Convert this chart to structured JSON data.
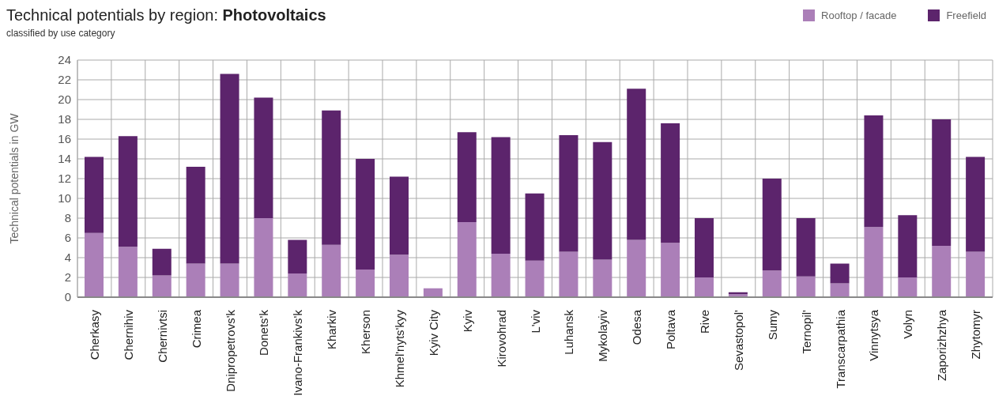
{
  "chart_data": {
    "type": "bar",
    "title": "Technical potentials by region: Photovoltaics",
    "subtitle": "classified by use category",
    "ylabel": "Technical potentials in GW",
    "categories": [
      "Cherkasy",
      "Chernihiv",
      "Chernivtsi",
      "Crimea",
      "Dnipropetrovs'k",
      "Donets'k",
      "Ivano-Frankivs'k",
      "Kharkiv",
      "Kherson",
      "Khmel'nyts'kyy",
      "Kyiv City",
      "Kyiv",
      "Kirovohrad",
      "L'viv",
      "Luhansk",
      "Mykolayiv",
      "Odesa",
      "Poltava",
      "Rive",
      "Sevastopol'",
      "Sumy",
      "Ternopil'",
      "Transcarpathia",
      "Vinnytsya",
      "Volyn",
      "Zaporizhzhya",
      "Zhytomyr"
    ],
    "series": [
      {
        "name": "Rooftop / facade",
        "color": "#ab7fb8",
        "values": [
          6.5,
          5.1,
          2.2,
          3.4,
          3.4,
          8.0,
          2.4,
          5.3,
          2.8,
          4.3,
          0.9,
          7.6,
          4.4,
          3.7,
          4.6,
          3.8,
          5.8,
          5.5,
          2.0,
          0.3,
          2.7,
          2.1,
          1.4,
          7.1,
          2.0,
          5.2,
          4.6
        ]
      },
      {
        "name": "Freefield",
        "color": "#5c246c",
        "values": [
          7.7,
          11.2,
          2.7,
          9.8,
          19.2,
          12.2,
          3.4,
          13.6,
          11.2,
          7.9,
          0,
          9.1,
          11.8,
          6.8,
          11.8,
          11.9,
          15.3,
          12.1,
          6.0,
          0.2,
          9.3,
          5.9,
          2.0,
          11.3,
          6.3,
          12.8,
          9.6
        ]
      }
    ],
    "stacked": true,
    "ylim": [
      0,
      24
    ],
    "yticks": [
      0,
      2,
      4,
      6,
      8,
      10,
      12,
      14,
      16,
      18,
      20,
      22,
      24
    ],
    "grid": true,
    "legend": "top right"
  }
}
